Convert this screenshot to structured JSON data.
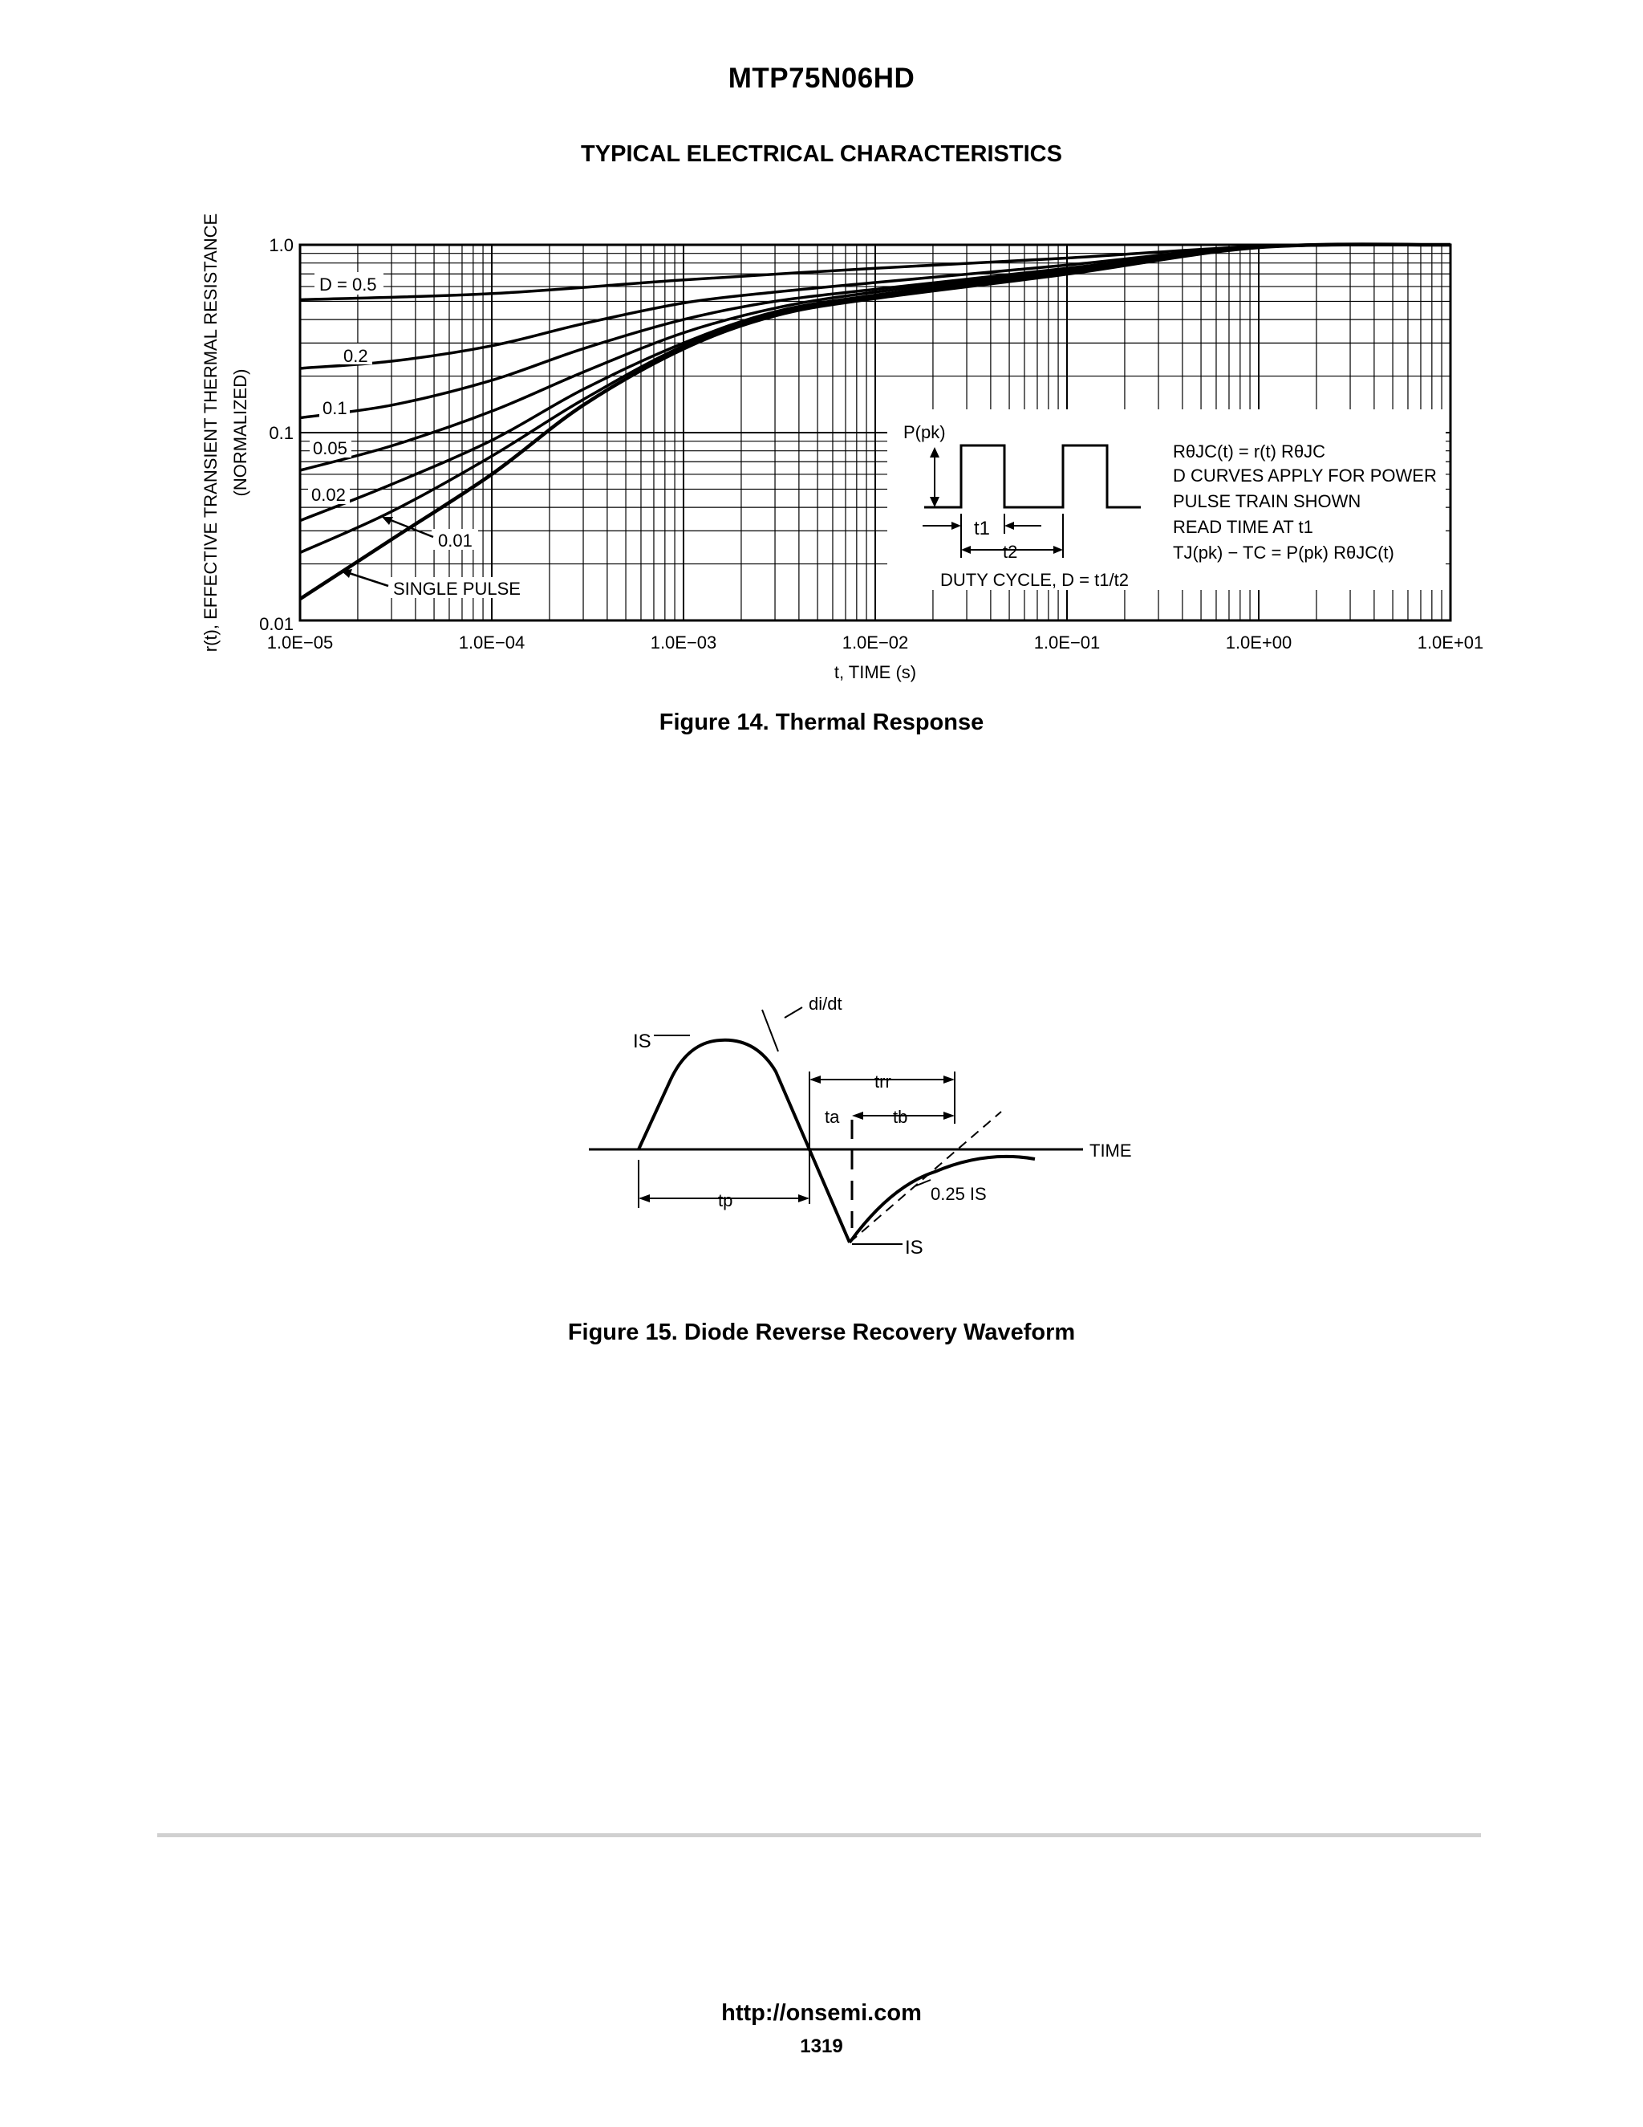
{
  "header": {
    "part_number": "MTP75N06HD",
    "section_title": "TYPICAL ELECTRICAL CHARACTERISTICS"
  },
  "figure14": {
    "caption": "Figure 14. Thermal Response",
    "inset": {
      "p_pk": "P(pk)",
      "t1": "t1",
      "t2": "t2",
      "duty_cycle": "DUTY CYCLE, D = t1/t2",
      "notes": [
        "RθJC(t) = r(t) RθJC",
        "D CURVES APPLY FOR POWER",
        "PULSE TRAIN SHOWN",
        "READ TIME AT t1",
        "TJ(pk) − TC = P(pk) RθJC(t)"
      ]
    }
  },
  "chart_data": {
    "type": "line",
    "title": "",
    "xlabel": "t, TIME (s)",
    "ylabel": "r(t), EFFECTIVE TRANSIENT THERMAL RESISTANCE (NORMALIZED)",
    "ylabel_lines": [
      "r(t), EFFECTIVE TRANSIENT THERMAL RESISTANCE",
      "(NORMALIZED)"
    ],
    "x_scale": "log",
    "y_scale": "log",
    "xlim": [
      1e-05,
      10
    ],
    "ylim": [
      0.01,
      1.0
    ],
    "grid": true,
    "x_ticks": [
      "1.0E−05",
      "1.0E−04",
      "1.0E−03",
      "1.0E−02",
      "1.0E−01",
      "1.0E+00",
      "1.0E+01"
    ],
    "y_ticks": [
      "0.01",
      "0.1",
      "1.0"
    ],
    "series": [
      {
        "name": "D = 0.5",
        "x": [
          1e-05,
          0.0001,
          0.001,
          0.01,
          0.1,
          1,
          10
        ],
        "values": [
          0.51,
          0.55,
          0.65,
          0.75,
          0.85,
          0.98,
          1.0
        ]
      },
      {
        "name": "0.2",
        "x": [
          1e-05,
          3e-05,
          0.0001,
          0.0003,
          0.001,
          0.003,
          0.01,
          0.1,
          1,
          10
        ],
        "values": [
          0.22,
          0.24,
          0.29,
          0.38,
          0.49,
          0.56,
          0.63,
          0.78,
          0.98,
          1.0
        ]
      },
      {
        "name": "0.1",
        "x": [
          1e-05,
          3e-05,
          0.0001,
          0.0003,
          0.001,
          0.003,
          0.01,
          0.1,
          1,
          10
        ],
        "values": [
          0.12,
          0.14,
          0.19,
          0.28,
          0.4,
          0.5,
          0.58,
          0.75,
          0.97,
          1.0
        ]
      },
      {
        "name": "0.05",
        "x": [
          1e-05,
          3e-05,
          0.0001,
          0.0003,
          0.001,
          0.003,
          0.01,
          0.1,
          1,
          10
        ],
        "values": [
          0.063,
          0.085,
          0.13,
          0.21,
          0.34,
          0.46,
          0.56,
          0.73,
          0.97,
          1.0
        ]
      },
      {
        "name": "0.02",
        "x": [
          1e-05,
          3e-05,
          0.0001,
          0.0003,
          0.001,
          0.003,
          0.01,
          0.1,
          1,
          10
        ],
        "values": [
          0.034,
          0.053,
          0.091,
          0.17,
          0.3,
          0.44,
          0.54,
          0.72,
          0.97,
          1.0
        ]
      },
      {
        "name": "0.01",
        "x": [
          1e-05,
          3e-05,
          0.0001,
          0.0003,
          0.001,
          0.003,
          0.01,
          0.1,
          1,
          10
        ],
        "values": [
          0.023,
          0.038,
          0.075,
          0.15,
          0.29,
          0.43,
          0.53,
          0.71,
          0.97,
          1.0
        ]
      },
      {
        "name": "SINGLE PULSE",
        "x": [
          1e-05,
          3e-05,
          0.0001,
          0.0003,
          0.001,
          0.003,
          0.01,
          0.1,
          1,
          10
        ],
        "values": [
          0.013,
          0.027,
          0.06,
          0.14,
          0.28,
          0.42,
          0.52,
          0.7,
          0.97,
          1.0
        ]
      }
    ]
  },
  "figure15": {
    "caption": "Figure 15. Diode Reverse Recovery Waveform",
    "labels": {
      "is_top": "IS",
      "didt": "di/dt",
      "trr": "trr",
      "ta": "ta",
      "tb": "tb",
      "time": "TIME",
      "tp": "tp",
      "quarter_is": "0.25 IS",
      "is_bottom": "IS"
    }
  },
  "footer": {
    "url": "http://onsemi.com",
    "page_number": "1319"
  }
}
